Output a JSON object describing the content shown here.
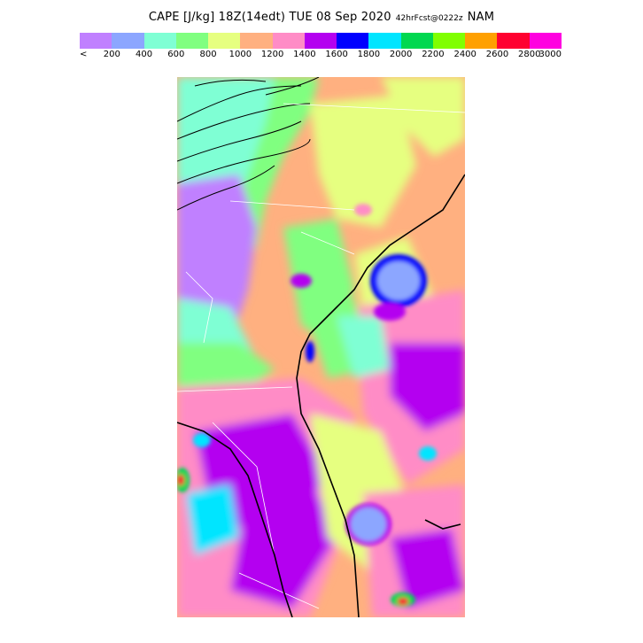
{
  "header": {
    "title_main": "CAPE [J/kg] 18Z(14edt) TUE 08 Sep 2020",
    "title_sub": "42hrFcst@0222z",
    "model": "NAM"
  },
  "legend": {
    "ticks": [
      "<",
      "200",
      "400",
      "600",
      "800",
      "1000",
      "1200",
      "1400",
      "1600",
      "1800",
      "2000",
      "2200",
      "2400",
      "2600",
      "2800",
      "3000"
    ],
    "colors": [
      "#c080ff",
      "#8ca6ff",
      "#7fffd4",
      "#80ff80",
      "#e6ff80",
      "#ffb080",
      "#ff8cc6",
      "#b400f0",
      "#0000ff",
      "#00e5ff",
      "#00d850",
      "#80ff00",
      "#ffa000",
      "#ff0030",
      "#ff00e0"
    ]
  },
  "map": {
    "icons": [
      "cape-field",
      "coastline",
      "state-borders",
      "contour-lines",
      "low-cape-center-atlantic",
      "low-cape-center-bahamas"
    ]
  }
}
